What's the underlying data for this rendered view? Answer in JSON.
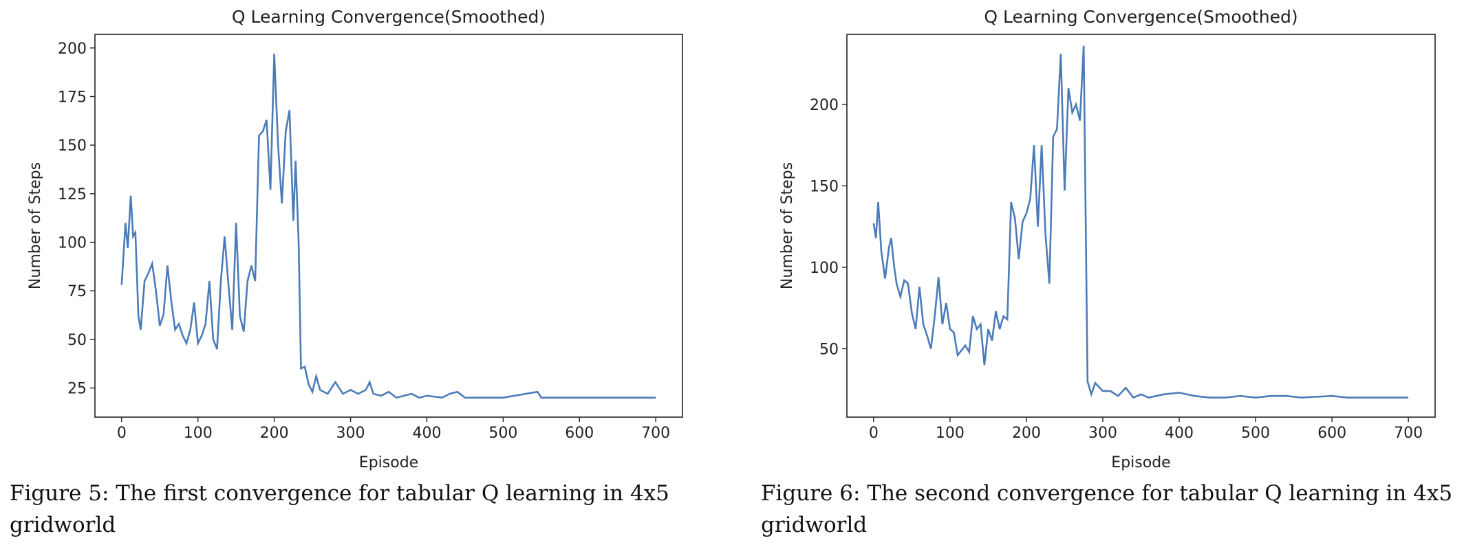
{
  "chart_data": [
    {
      "type": "line",
      "title": "Q Learning Convergence(Smoothed)",
      "xlabel": "Episode",
      "ylabel": "Number of Steps",
      "color": "#4c7cb8",
      "xlim": [
        -35,
        735
      ],
      "ylim": [
        10,
        207
      ],
      "xticks": [
        0,
        100,
        200,
        300,
        400,
        500,
        600,
        700
      ],
      "yticks": [
        25,
        50,
        75,
        100,
        125,
        150,
        175,
        200
      ],
      "x": [
        0,
        5,
        8,
        12,
        15,
        18,
        22,
        25,
        30,
        35,
        40,
        45,
        50,
        55,
        60,
        65,
        70,
        75,
        80,
        85,
        90,
        95,
        100,
        105,
        110,
        115,
        120,
        125,
        130,
        135,
        140,
        145,
        150,
        155,
        160,
        165,
        170,
        175,
        180,
        185,
        190,
        195,
        200,
        205,
        210,
        215,
        220,
        225,
        228,
        232,
        235,
        240,
        245,
        250,
        255,
        260,
        270,
        280,
        290,
        300,
        310,
        320,
        325,
        330,
        340,
        350,
        360,
        380,
        390,
        400,
        420,
        430,
        440,
        450,
        500,
        545,
        550,
        600,
        650,
        700
      ],
      "values": [
        78,
        110,
        97,
        124,
        103,
        105,
        62,
        55,
        80,
        84,
        89,
        75,
        57,
        63,
        88,
        70,
        55,
        58,
        52,
        48,
        55,
        69,
        48,
        52,
        58,
        80,
        50,
        45,
        80,
        103,
        78,
        55,
        110,
        62,
        54,
        80,
        88,
        80,
        155,
        157,
        163,
        127,
        197,
        150,
        120,
        157,
        168,
        111,
        142,
        100,
        35,
        36,
        27,
        23,
        31,
        24,
        22,
        28,
        22,
        24,
        22,
        24,
        28,
        22,
        21,
        23,
        20,
        22,
        20,
        21,
        20,
        22,
        23,
        20,
        20,
        23,
        20,
        20,
        20,
        20
      ]
    },
    {
      "type": "line",
      "title": "Q Learning Convergence(Smoothed)",
      "xlabel": "Episode",
      "ylabel": "Number of Steps",
      "color": "#4c7cb8",
      "xlim": [
        -35,
        735
      ],
      "ylim": [
        8,
        243
      ],
      "xticks": [
        0,
        100,
        200,
        300,
        400,
        500,
        600,
        700
      ],
      "yticks": [
        50,
        100,
        150,
        200
      ],
      "x": [
        0,
        3,
        6,
        10,
        15,
        20,
        23,
        27,
        30,
        35,
        40,
        45,
        50,
        55,
        60,
        65,
        70,
        75,
        80,
        85,
        90,
        95,
        100,
        105,
        110,
        115,
        120,
        125,
        130,
        135,
        140,
        145,
        150,
        155,
        160,
        165,
        170,
        175,
        180,
        185,
        190,
        195,
        200,
        205,
        210,
        215,
        220,
        225,
        230,
        235,
        240,
        245,
        250,
        255,
        260,
        265,
        270,
        275,
        280,
        285,
        290,
        300,
        310,
        320,
        330,
        340,
        350,
        360,
        380,
        400,
        420,
        440,
        460,
        480,
        500,
        520,
        540,
        560,
        600,
        620,
        660,
        700
      ],
      "values": [
        127,
        118,
        140,
        110,
        93,
        112,
        118,
        100,
        90,
        82,
        92,
        90,
        72,
        62,
        88,
        65,
        58,
        50,
        70,
        94,
        65,
        78,
        62,
        60,
        46,
        49,
        52,
        48,
        70,
        62,
        65,
        40,
        62,
        55,
        73,
        62,
        70,
        68,
        140,
        130,
        105,
        128,
        133,
        142,
        175,
        125,
        175,
        120,
        90,
        180,
        185,
        231,
        147,
        210,
        195,
        200,
        190,
        236,
        30,
        22,
        29,
        24,
        24,
        21,
        26,
        20,
        22,
        20,
        22,
        23,
        21,
        20,
        20,
        21,
        20,
        21,
        21,
        20,
        21,
        20,
        20,
        20
      ]
    }
  ],
  "captions": [
    "Figure 5: The first convergence for tabular Q learning in 4x5 gridworld",
    "Figure 6: The second convergence for tabular Q learning in 4x5 gridworld"
  ]
}
